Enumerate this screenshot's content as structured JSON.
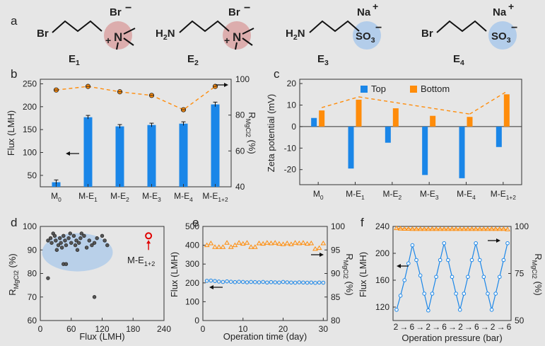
{
  "colors": {
    "blue": "#1a86e8",
    "orange": "#ff8c0a",
    "red": "#e00000",
    "purple": "#9b00ff",
    "navy": "#1a1ad0",
    "gray": "#222222"
  },
  "molecules": [
    {
      "label": "E",
      "sub": "1",
      "head": "Br",
      "tail_ion": "Br",
      "tail": "N",
      "tail_charge": "+",
      "type": "ammonium"
    },
    {
      "label": "E",
      "sub": "2",
      "head": "H2N",
      "tail_ion": "Br",
      "tail": "N",
      "tail_charge": "+",
      "type": "ammonium"
    },
    {
      "label": "E",
      "sub": "3",
      "head": "H2N",
      "tail_ion": "Na",
      "tail": "SO3",
      "tail_charge": "-",
      "type": "sulfonate"
    },
    {
      "label": "E",
      "sub": "4",
      "head": "Br",
      "tail_ion": "Na",
      "tail": "SO3",
      "tail_charge": "-",
      "type": "sulfonate"
    }
  ],
  "panel_letters": [
    "a",
    "b",
    "c",
    "d",
    "e",
    "f"
  ],
  "chart_data": [
    {
      "panel": "b",
      "type": "bar",
      "categories": [
        "M0",
        "M-E1",
        "M-E2",
        "M-E3",
        "M-E4",
        "M-E1+2"
      ],
      "series": [
        {
          "values": [
            35,
            177,
            157,
            160,
            163,
            205
          ],
          "errors": [
            5,
            4,
            4,
            4,
            4,
            5
          ],
          "axis": "left"
        },
        {
          "values": [
            94,
            96,
            93,
            91,
            83,
            96
          ],
          "axis": "right",
          "style": "circle",
          "trend": "dashed"
        }
      ],
      "ylabel": "Flux (LMH)",
      "ylim": [
        25,
        260
      ],
      "yticks": [
        50,
        100,
        150,
        200,
        250
      ],
      "y2label": "RMgCl2 (%)",
      "y2lim": [
        40,
        100
      ],
      "y2ticks": [
        40,
        60,
        80,
        100
      ]
    },
    {
      "panel": "c",
      "type": "bar",
      "categories": [
        "M0",
        "M-E1",
        "M-E2",
        "M-E3",
        "M-E4",
        "M-E1+2"
      ],
      "series": [
        {
          "name": "Top",
          "values": [
            4,
            -19.5,
            -7.5,
            -22.5,
            -24,
            -9.5
          ]
        },
        {
          "name": "Bottom",
          "values": [
            7.5,
            12.5,
            8.5,
            5,
            4.5,
            15
          ]
        }
      ],
      "ylabel": "Zeta potential (mV)",
      "ylim": [
        -27,
        22
      ],
      "yticks": [
        -20,
        -10,
        0,
        10,
        20
      ],
      "legend": "top"
    },
    {
      "panel": "d",
      "type": "scatter",
      "x": [
        15,
        20,
        22,
        25,
        28,
        30,
        32,
        35,
        38,
        40,
        42,
        45,
        48,
        50,
        55,
        58,
        60,
        65,
        68,
        70,
        72,
        75,
        78,
        80,
        85,
        90,
        95,
        100,
        105,
        110,
        120,
        125,
        130,
        15,
        45,
        50,
        105
      ],
      "y": [
        94,
        95,
        93,
        97,
        96,
        94,
        90,
        92,
        95,
        93,
        91,
        96,
        94,
        92,
        95,
        97,
        93,
        96,
        92,
        94,
        90,
        93,
        95,
        97,
        96,
        91,
        94,
        92,
        93,
        95,
        96,
        94,
        92,
        78,
        84,
        84,
        70
      ],
      "highlight": {
        "label": "M-E1+2",
        "x": 210,
        "y": 96
      },
      "xlabel": "Flux (LMH)",
      "ylabel": "RMgCl2 (%)",
      "xlim": [
        0,
        240
      ],
      "ylim": [
        60,
        100
      ],
      "xticks": [
        0,
        60,
        120,
        180,
        240
      ],
      "yticks": [
        60,
        70,
        80,
        90,
        100
      ]
    },
    {
      "panel": "e",
      "type": "scatter",
      "x": [
        1,
        2,
        3,
        4,
        5,
        6,
        7,
        8,
        9,
        10,
        11,
        12,
        13,
        14,
        15,
        16,
        17,
        18,
        19,
        20,
        21,
        22,
        23,
        24,
        25,
        26,
        27,
        28,
        29,
        30
      ],
      "series": [
        {
          "values": [
            211,
            212,
            210,
            207,
            205,
            208,
            206,
            204,
            206,
            205,
            203,
            205,
            204,
            203,
            205,
            202,
            204,
            203,
            202,
            205,
            203,
            202,
            201,
            203,
            202,
            201,
            202,
            200,
            202,
            201
          ],
          "axis": "left",
          "marker": "circle"
        },
        {
          "values": [
            96,
            96.4,
            95.6,
            95.6,
            95.6,
            96.5,
            95.6,
            96,
            96.5,
            96.3,
            96.5,
            95.6,
            95.6,
            96.4,
            96.3,
            96.5,
            96.4,
            96.5,
            96.3,
            96.2,
            96.4,
            96.2,
            96.5,
            96.4,
            96.5,
            96.3,
            96.4,
            95.2,
            95.4,
            96.4
          ],
          "axis": "right",
          "marker": "triangle"
        }
      ],
      "xlabel": "Operation time (day)",
      "ylabel": "Flux (LMH)",
      "y2label": "RMgCl2 (%)",
      "xlim": [
        0,
        31
      ],
      "ylim": [
        0,
        500
      ],
      "y2lim": [
        80,
        100
      ],
      "xticks": [
        0,
        10,
        20,
        30
      ],
      "yticks": [
        0,
        100,
        200,
        300,
        400,
        500
      ],
      "y2ticks": [
        80,
        85,
        90,
        95,
        100
      ]
    },
    {
      "panel": "f",
      "type": "line",
      "cycle_labels": [
        "2",
        "6",
        "2",
        "6",
        "2",
        "6",
        "2",
        "6"
      ],
      "series": [
        {
          "values": [
            116,
            137,
            160,
            185,
            212,
            190,
            167,
            140,
            115,
            140,
            165,
            190,
            215,
            190,
            165,
            140,
            116,
            140,
            165,
            190,
            215,
            190,
            165,
            140,
            116,
            140,
            165,
            190,
            215
          ],
          "axis": "left",
          "marker": "circle"
        },
        {
          "values": [
            99,
            98.8,
            98.7,
            98.7,
            98.6,
            98.6,
            98.6,
            98.6,
            98.6,
            98.6,
            98.6,
            98.6,
            98.6,
            98.6,
            98.6,
            98.6,
            98.6,
            98.6,
            98.6,
            98.6,
            98.6,
            98.6,
            98.6,
            98.6,
            98.6,
            98.6,
            98.6,
            98.6,
            98.4
          ],
          "axis": "right",
          "marker": "triangle"
        }
      ],
      "xlabel": "Operation pressure (bar)",
      "ylabel": "Flux (LMH)",
      "y2label": "RMgCl2 (%)",
      "ylim": [
        100,
        240
      ],
      "y2lim": [
        50,
        100
      ],
      "yticks": [
        120,
        160,
        200,
        240
      ],
      "y2ticks": [
        50,
        75,
        100
      ]
    }
  ]
}
